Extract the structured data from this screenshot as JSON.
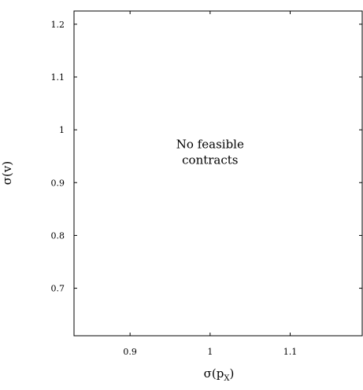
{
  "chart_data": {
    "type": "scatter",
    "title": "",
    "xlabel": "σ(p",
    "xlabel_sub": "X",
    "xlabel_close": ")",
    "ylabel": "σ(v)",
    "xlim": [
      0.83,
      1.19
    ],
    "ylim": [
      0.61,
      1.225
    ],
    "x_ticks": [
      {
        "value": 0.9,
        "label": "0.9"
      },
      {
        "value": 1.0,
        "label": "1"
      },
      {
        "value": 1.1,
        "label": "1.1"
      }
    ],
    "y_ticks": [
      {
        "value": 0.7,
        "label": "0.7"
      },
      {
        "value": 0.8,
        "label": "0.8"
      },
      {
        "value": 0.9,
        "label": "0.9"
      },
      {
        "value": 1.0,
        "label": "1"
      },
      {
        "value": 1.1,
        "label": "1.1"
      },
      {
        "value": 1.2,
        "label": "1.2"
      }
    ],
    "series": [],
    "grid": false,
    "annotations": [
      {
        "lines": [
          "No feasible",
          "contracts"
        ],
        "x": 1.0,
        "y": 0.95
      }
    ]
  }
}
